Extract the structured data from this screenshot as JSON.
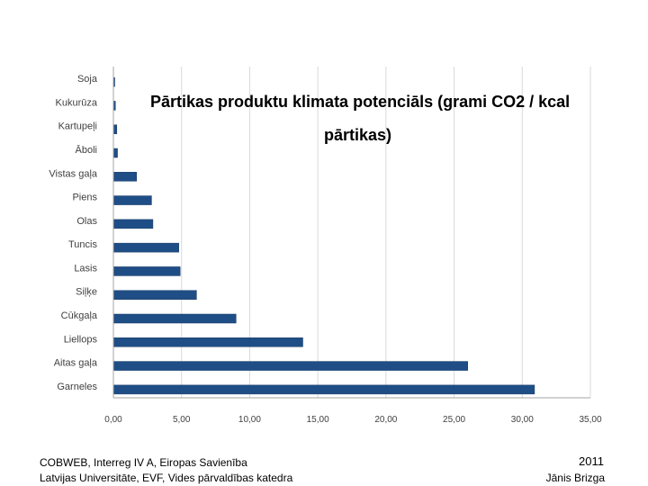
{
  "chart_data": {
    "type": "bar",
    "orientation": "horizontal",
    "title_line1": "Pārtikas produktu klimata potenciāls (grami CO2 / kcal",
    "title_line2": "pārtikas)",
    "categories": [
      "Soja",
      "Kukurūza",
      "Kartupeļi",
      "Āboli",
      "Vistas gaļa",
      "Piens",
      "Olas",
      "Tuncis",
      "Lasis",
      "Siļķe",
      "Cūkgaļa",
      "Liellops",
      "Aitas gaļa",
      "Garneles"
    ],
    "values": [
      0.1,
      0.15,
      0.25,
      0.3,
      1.7,
      2.8,
      2.9,
      4.8,
      4.9,
      6.1,
      9.0,
      13.9,
      26.0,
      30.9
    ],
    "xlim": [
      0,
      35
    ],
    "xticks": [
      "0,00",
      "5,00",
      "10,00",
      "15,00",
      "20,00",
      "25,00",
      "30,00",
      "35,00"
    ],
    "grid": true,
    "bar_color": "#1F4E86"
  },
  "footer": {
    "org_line": "COBWEB, Interreg IV A, Eiropas Savienība",
    "dept_line": "Latvijas Universitāte, EVF, Vides pārvaldības katedra",
    "year": "2011",
    "author": "Jānis Brizga"
  }
}
